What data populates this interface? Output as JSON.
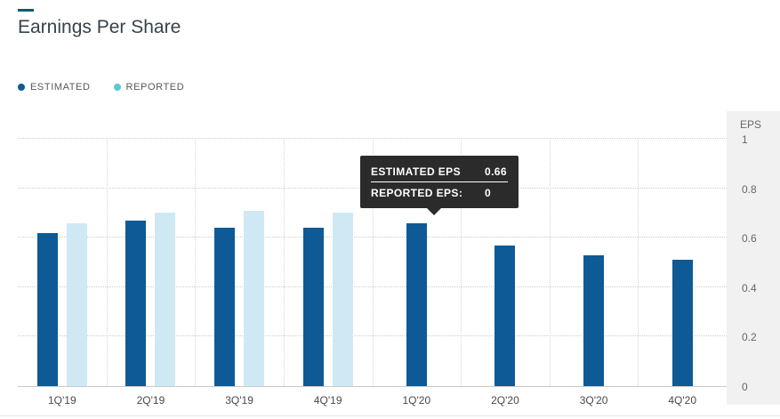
{
  "header": {
    "title": "Earnings Per Share"
  },
  "colors": {
    "accent": "#065d6e",
    "estimated": "#0e5a96",
    "reported_bar": "#cfe9f4",
    "reported_dot": "#5fc6d3",
    "tooltip_bg": "#2b2b2b"
  },
  "legend": {
    "items": [
      {
        "label": "ESTIMATED",
        "color": "#0e5a96"
      },
      {
        "label": "REPORTED",
        "color": "#5fc6d3"
      }
    ]
  },
  "axis": {
    "label": "EPS"
  },
  "tooltip": {
    "rows": [
      {
        "label": "ESTIMATED EPS",
        "value": "0.66"
      },
      {
        "label": "REPORTED EPS:",
        "value": "0"
      }
    ],
    "anchor_category": "1Q'20"
  },
  "chart_data": {
    "type": "bar",
    "title": "Earnings Per Share",
    "categories": [
      "1Q'19",
      "2Q'19",
      "3Q'19",
      "4Q'19",
      "1Q'20",
      "2Q'20",
      "3Q'20",
      "4Q'20"
    ],
    "series": [
      {
        "name": "ESTIMATED",
        "color": "#0e5a96",
        "values": [
          0.62,
          0.67,
          0.64,
          0.64,
          0.66,
          0.57,
          0.53,
          0.51
        ]
      },
      {
        "name": "REPORTED",
        "color": "#cfe9f4",
        "values": [
          0.66,
          0.7,
          0.71,
          0.7,
          0,
          0,
          0,
          0
        ]
      }
    ],
    "xlabel": "",
    "ylabel": "EPS",
    "ylim": [
      0,
      1
    ],
    "yticks": [
      {
        "label": "0",
        "value": 0
      },
      {
        "label": "0.2",
        "value": 0.2
      },
      {
        "label": "0.4",
        "value": 0.4
      },
      {
        "label": "0.6",
        "value": 0.6
      },
      {
        "label": "0.8",
        "value": 0.8
      },
      {
        "label": "1",
        "value": 1
      }
    ],
    "grid": "dotted",
    "legend_position": "top-left",
    "tooltip_shown": {
      "category": "1Q'20",
      "estimated_eps": 0.66,
      "reported_eps": 0
    }
  }
}
